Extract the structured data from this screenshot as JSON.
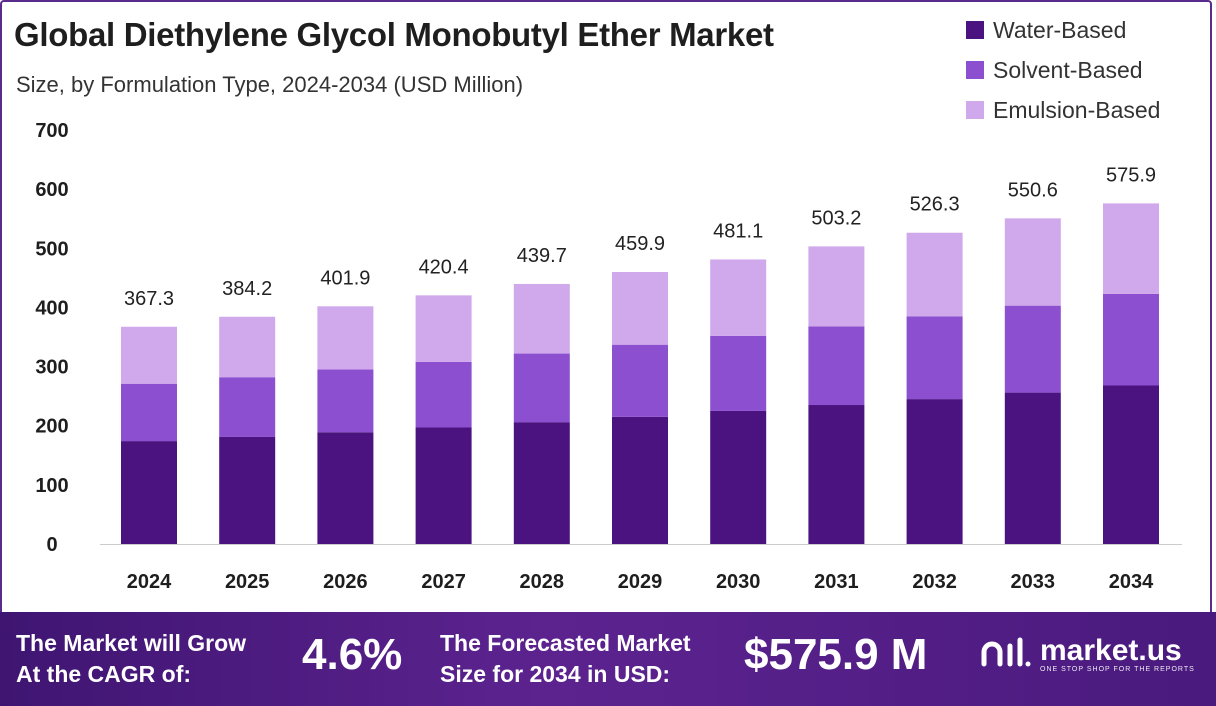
{
  "title": "Global Diethylene Glycol Monobutyl Ether Market",
  "subtitle": "Size, by Formulation Type, 2024-2034 (USD Million)",
  "colors": {
    "water": "#4b1380",
    "solvent": "#8c4fcf",
    "emulsion": "#d0a8ec",
    "axis": "#cccccc",
    "text": "#1e1e1e"
  },
  "chart_data": {
    "type": "bar",
    "stacked": true,
    "categories": [
      "2024",
      "2025",
      "2026",
      "2027",
      "2028",
      "2029",
      "2030",
      "2031",
      "2032",
      "2033",
      "2034"
    ],
    "series": [
      {
        "name": "Water-Based",
        "values": [
          174,
          181,
          189,
          197,
          206,
          215,
          225,
          235,
          245,
          256,
          268
        ]
      },
      {
        "name": "Solvent-Based",
        "values": [
          97,
          101,
          106,
          111,
          116,
          122,
          127,
          133,
          140,
          147,
          155
        ]
      },
      {
        "name": "Emulsion-Based",
        "values": [
          96.3,
          102.2,
          106.9,
          112.4,
          117.7,
          122.9,
          129.1,
          135.2,
          141.3,
          147.6,
          152.9
        ]
      }
    ],
    "totals": [
      "367.3",
      "384.2",
      "401.9",
      "420.4",
      "439.7",
      "459.9",
      "481.1",
      "503.2",
      "526.3",
      "550.6",
      "575.9"
    ],
    "y_ticks": [
      "0",
      "100",
      "200",
      "300",
      "400",
      "500",
      "600",
      "700"
    ],
    "ylim": [
      0,
      700
    ],
    "grid": false,
    "legend_position": "top-right"
  },
  "footer": {
    "cagr_label_line1": "The Market will Grow",
    "cagr_label_line2": "At the CAGR of:",
    "cagr_value": "4.6%",
    "forecast_label_line1": "The Forecasted Market",
    "forecast_label_line2": "Size for 2034 in USD:",
    "forecast_value": "$575.9 M",
    "brand_name": "market.us",
    "brand_tagline": "ONE STOP SHOP FOR THE REPORTS"
  }
}
